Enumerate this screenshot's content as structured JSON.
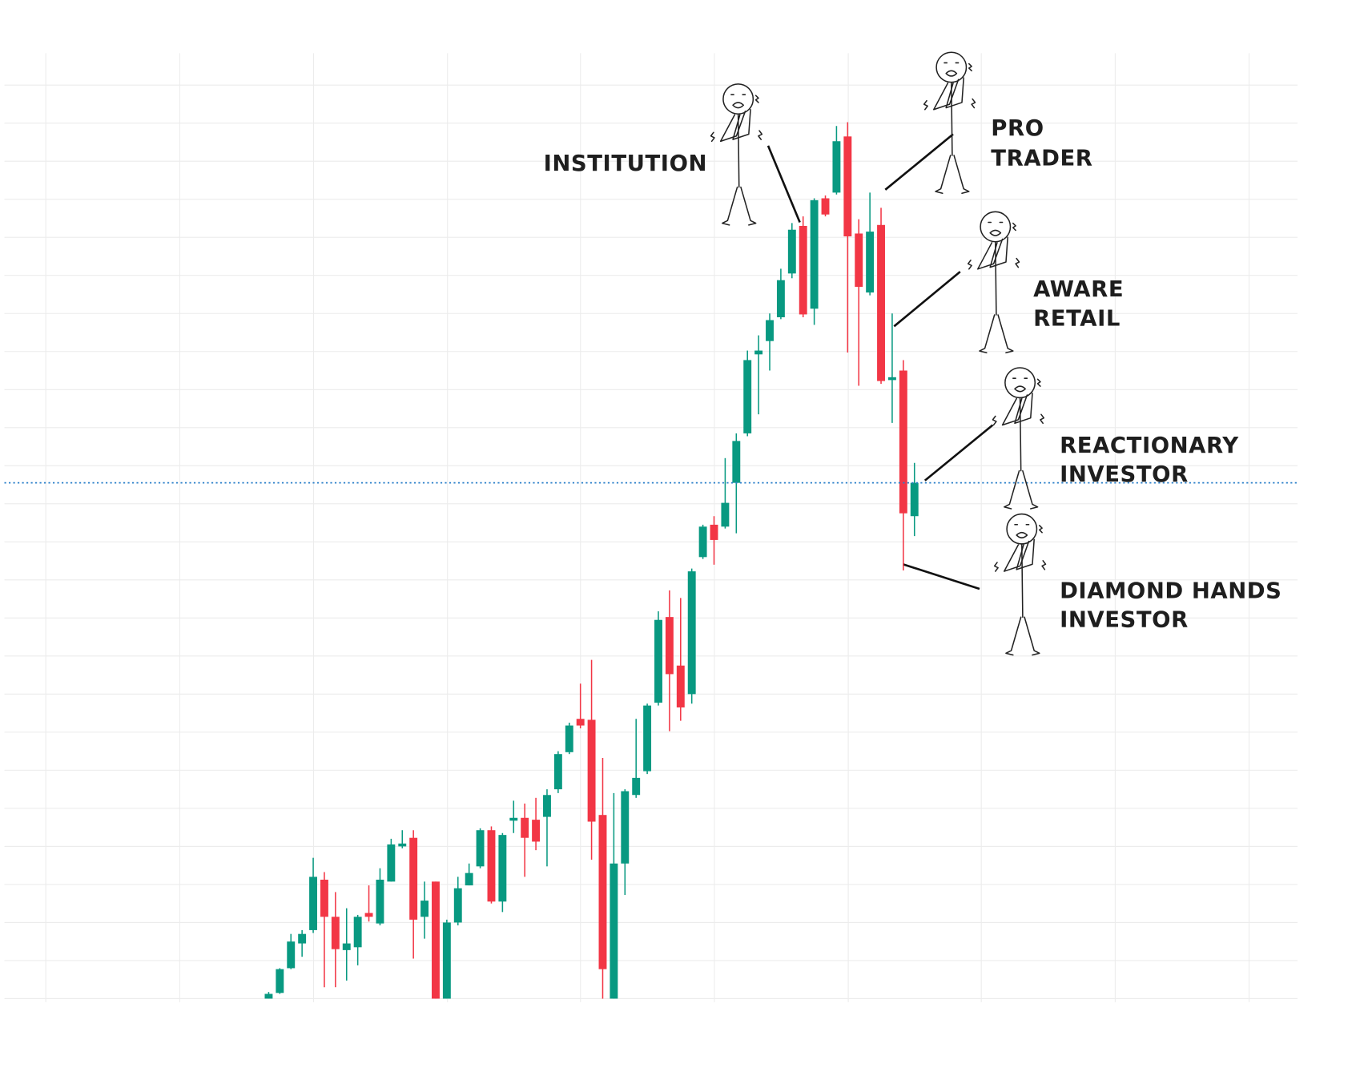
{
  "chart_data": {
    "type": "candlestick",
    "categories": [
      null,
      null,
      null,
      null,
      null,
      null,
      null,
      null,
      null,
      null,
      null,
      null,
      null,
      null,
      null,
      null,
      null,
      null,
      null,
      null,
      null,
      null,
      null,
      null,
      null,
      null,
      null,
      null,
      null,
      null,
      null,
      null,
      null,
      null,
      null,
      null,
      null,
      null,
      null,
      null,
      null,
      null,
      null,
      null,
      null,
      null,
      null,
      null,
      null,
      null,
      null,
      null,
      null,
      null,
      null,
      null,
      null,
      null,
      null
    ],
    "open": [
      0,
      0.6,
      3.2,
      5.8,
      7.2,
      12.5,
      8.6,
      5.1,
      5.4,
      9.0,
      7.9,
      12.3,
      16.0,
      16.9,
      8.6,
      12.3,
      0,
      8.0,
      11.9,
      13.9,
      17.7,
      10.2,
      18.7,
      19.0,
      18.8,
      19.1,
      22.0,
      25.9,
      29.4,
      29.3,
      19.3,
      0,
      14.2,
      21.4,
      23.9,
      31.1,
      40.1,
      35.0,
      32.0,
      46.4,
      49.8,
      49.6,
      54.2,
      59.4,
      67.7,
      69.1,
      71.6,
      76.2,
      81.2,
      72.5,
      84.1,
      84.7,
      90.6,
      80.4,
      74.2,
      81.3,
      65.0,
      66.0,
      50.7
    ],
    "high": [
      0.7,
      3.2,
      6.8,
      7.2,
      14.8,
      13.3,
      11.2,
      9.5,
      8.8,
      11.9,
      13.7,
      16.8,
      17.7,
      17.7,
      12.3,
      12.3,
      8.3,
      12.8,
      14.2,
      17.9,
      18.1,
      17.4,
      20.8,
      20.5,
      21.1,
      22.0,
      26.0,
      29.0,
      33.1,
      35.6,
      25.3,
      21.6,
      22.0,
      29.4,
      31.0,
      40.7,
      42.9,
      42.1,
      45.2,
      49.8,
      50.7,
      56.8,
      59.4,
      68.1,
      69.7,
      72.0,
      76.7,
      81.5,
      82.2,
      84.1,
      84.4,
      91.7,
      92.1,
      81.9,
      84.7,
      83.1,
      72.0,
      67.1,
      56.3
    ],
    "low": [
      0,
      0.5,
      3.1,
      4.4,
      6.9,
      1.2,
      1.2,
      1.9,
      3.5,
      8.1,
      7.7,
      12.3,
      15.8,
      4.2,
      6.3,
      0,
      0,
      7.7,
      11.9,
      13.7,
      10.0,
      9.1,
      17.4,
      12.8,
      15.6,
      13.9,
      21.6,
      25.7,
      28.4,
      14.6,
      0,
      0,
      10.9,
      21.1,
      23.6,
      30.8,
      28.1,
      29.2,
      31.0,
      46.2,
      45.6,
      49.4,
      48.9,
      59.1,
      61.4,
      66.0,
      71.4,
      75.7,
      71.6,
      70.8,
      82.2,
      84.5,
      67.9,
      64.4,
      73.9,
      64.6,
      60.5,
      45.0,
      48.6
    ],
    "close": [
      0.5,
      3.1,
      6.0,
      6.8,
      12.8,
      8.6,
      5.2,
      5.8,
      8.6,
      8.6,
      12.5,
      16.2,
      16.3,
      8.3,
      10.3,
      0,
      8.0,
      11.6,
      13.2,
      17.7,
      10.2,
      17.2,
      19.0,
      16.9,
      16.5,
      21.4,
      25.7,
      28.7,
      28.7,
      18.6,
      3.1,
      14.2,
      21.8,
      23.2,
      30.8,
      39.8,
      34.1,
      30.6,
      44.9,
      49.6,
      48.2,
      52.1,
      58.6,
      67.1,
      68.1,
      71.3,
      75.5,
      80.8,
      71.9,
      83.9,
      82.4,
      90.1,
      80.1,
      74.8,
      80.6,
      64.9,
      65.3,
      51.0,
      54.2
    ],
    "up_color": "#089981",
    "down_color": "#f23645",
    "last_price_color": "#2a7fc9",
    "ylim": [
      0,
      100
    ],
    "yticks": [
      0,
      4,
      8,
      12,
      16,
      20,
      24,
      28,
      32,
      36,
      40,
      44,
      48,
      52,
      56,
      60,
      64,
      68,
      72,
      76,
      80,
      84,
      88,
      92,
      96
    ],
    "grid": true,
    "annotations": [
      {
        "lines": [
          "INSTITUTION"
        ]
      },
      {
        "lines": [
          "PRO",
          "TRADER"
        ]
      },
      {
        "lines": [
          "AWARE",
          "RETAIL"
        ]
      },
      {
        "lines": [
          "REACTIONARY",
          "INVESTOR"
        ]
      },
      {
        "lines": [
          "DIAMOND HANDS",
          "INVESTOR"
        ]
      }
    ]
  }
}
